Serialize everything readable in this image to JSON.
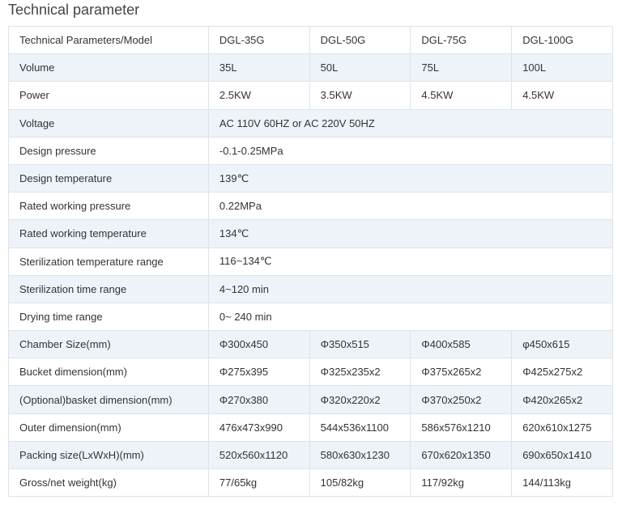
{
  "title": "Technical parameter",
  "table": {
    "rows": [
      [
        "Technical Parameters/Model",
        "DGL-35G",
        "DGL-50G",
        "DGL-75G",
        "DGL-100G"
      ],
      [
        "Volume",
        "35L",
        "50L",
        "75L",
        "100L"
      ],
      [
        "Power",
        "2.5KW",
        "3.5KW",
        "4.5KW",
        "4.5KW"
      ],
      [
        "Voltage",
        "AC 110V 60HZ or AC 220V 50HZ"
      ],
      [
        "Design pressure",
        "-0.1-0.25MPa"
      ],
      [
        "Design temperature",
        "139℃"
      ],
      [
        "Rated working pressure",
        "0.22MPa"
      ],
      [
        "Rated working temperature",
        "134℃"
      ],
      [
        "Sterilization temperature range",
        "116~134℃"
      ],
      [
        "Sterilization time range",
        "4~120 min"
      ],
      [
        "Drying time range",
        "0~ 240 min"
      ],
      [
        "Chamber Size(mm)",
        "Φ300x450",
        "Φ350x515",
        "Φ400x585",
        "φ450x615"
      ],
      [
        "Bucket dimension(mm)",
        "Φ275x395",
        "Φ325x235x2",
        "Φ375x265x2",
        "Φ425x275x2"
      ],
      [
        "(Optional)basket dimension(mm)",
        "Φ270x380",
        "Φ320x220x2",
        "Φ370x250x2",
        "Φ420x265x2"
      ],
      [
        "Outer dimension(mm)",
        "476x473x990",
        "544x536x1100",
        "586x576x1210",
        "620x610x1275"
      ],
      [
        "Packing size(LxWxH)(mm)",
        "520x560x1120",
        "580x630x1230",
        "670x620x1350",
        "690x650x1410"
      ],
      [
        "Gross/net weight(kg)",
        "77/65kg",
        "105/82kg",
        "117/92kg",
        "144/113kg"
      ]
    ]
  }
}
